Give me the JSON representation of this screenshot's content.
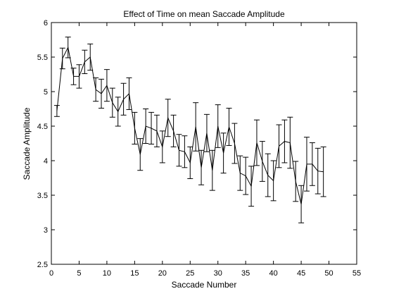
{
  "chart_data": {
    "type": "line",
    "title": "Effect of Time on mean Saccade Amplitude",
    "xlabel": "Saccade Number",
    "ylabel": "Saccade Amplitude",
    "xlim": [
      0,
      55
    ],
    "ylim": [
      2.5,
      6
    ],
    "xticks": [
      0,
      5,
      10,
      15,
      20,
      25,
      30,
      35,
      40,
      45,
      50,
      55
    ],
    "yticks": [
      2.5,
      3,
      3.5,
      4,
      4.5,
      5,
      5.5,
      6
    ],
    "grid": false,
    "line_color": "#000000",
    "x": [
      1,
      2,
      3,
      4,
      5,
      6,
      7,
      8,
      9,
      10,
      11,
      12,
      13,
      14,
      15,
      16,
      17,
      18,
      19,
      20,
      21,
      22,
      23,
      24,
      25,
      26,
      27,
      28,
      29,
      30,
      31,
      32,
      33,
      34,
      35,
      36,
      37,
      38,
      39,
      40,
      41,
      42,
      43,
      44,
      45,
      46,
      47,
      48,
      49
    ],
    "series": [
      {
        "values": [
          4.72,
          5.48,
          5.64,
          5.22,
          5.22,
          5.43,
          5.5,
          5.03,
          4.97,
          5.09,
          4.84,
          4.71,
          4.89,
          4.97,
          4.47,
          4.09,
          4.5,
          4.47,
          4.43,
          4.2,
          4.62,
          4.43,
          4.15,
          4.13,
          3.97,
          4.49,
          3.9,
          4.4,
          3.86,
          4.5,
          4.11,
          4.49,
          4.25,
          3.82,
          3.78,
          3.63,
          4.26,
          3.99,
          3.79,
          3.71,
          4.21,
          4.28,
          4.26,
          3.7,
          3.37,
          3.95,
          3.95,
          3.85,
          3.84
        ],
        "errors": [
          0.08,
          0.15,
          0.15,
          0.12,
          0.17,
          0.17,
          0.19,
          0.17,
          0.21,
          0.23,
          0.21,
          0.21,
          0.23,
          0.23,
          0.23,
          0.23,
          0.25,
          0.23,
          0.23,
          0.23,
          0.27,
          0.23,
          0.23,
          0.23,
          0.23,
          0.35,
          0.25,
          0.27,
          0.29,
          0.31,
          0.29,
          0.27,
          0.29,
          0.25,
          0.27,
          0.29,
          0.33,
          0.29,
          0.31,
          0.29,
          0.31,
          0.31,
          0.37,
          0.29,
          0.27,
          0.39,
          0.31,
          0.33,
          0.36
        ]
      }
    ]
  }
}
